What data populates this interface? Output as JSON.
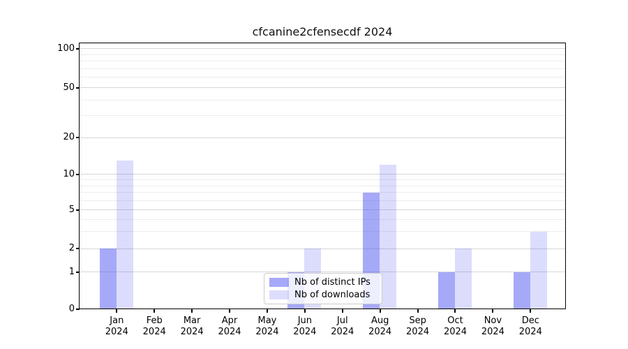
{
  "chart_data": {
    "type": "bar",
    "title": "cfcanine2cfensecdf 2024",
    "x_axis": {
      "categories": [
        {
          "month": "Jan",
          "year": "2024"
        },
        {
          "month": "Feb",
          "year": "2024"
        },
        {
          "month": "Mar",
          "year": "2024"
        },
        {
          "month": "Apr",
          "year": "2024"
        },
        {
          "month": "May",
          "year": "2024"
        },
        {
          "month": "Jun",
          "year": "2024"
        },
        {
          "month": "Jul",
          "year": "2024"
        },
        {
          "month": "Aug",
          "year": "2024"
        },
        {
          "month": "Sep",
          "year": "2024"
        },
        {
          "month": "Oct",
          "year": "2024"
        },
        {
          "month": "Nov",
          "year": "2024"
        },
        {
          "month": "Dec",
          "year": "2024"
        }
      ]
    },
    "y_axis": {
      "scale": "symlog",
      "range": [
        0,
        100
      ],
      "major_ticks": [
        0,
        1,
        2,
        5,
        10,
        20,
        50,
        100
      ],
      "minor_ticks": [
        3,
        4,
        6,
        7,
        8,
        9,
        30,
        40,
        60,
        70,
        80,
        90
      ]
    },
    "series": [
      {
        "name": "Nb of distinct IPs",
        "color": "rgba(78,84,240,0.5)",
        "values": [
          2,
          0,
          0,
          0,
          0,
          1,
          0,
          7,
          0,
          1,
          0,
          1
        ]
      },
      {
        "name": "Nb of downloads",
        "color": "rgba(78,84,240,0.2)",
        "values": [
          13,
          0,
          0,
          0,
          0,
          2,
          0,
          12,
          0,
          2,
          0,
          3
        ]
      }
    ],
    "legend": {
      "position": "lower center",
      "entries": [
        "Nb of distinct IPs",
        "Nb of downloads"
      ]
    },
    "grid": {
      "show": true,
      "major_color": "#d6d6d6",
      "minor_color": "#ededed"
    },
    "axis_color": "#000000",
    "background_color": "#ffffff"
  }
}
